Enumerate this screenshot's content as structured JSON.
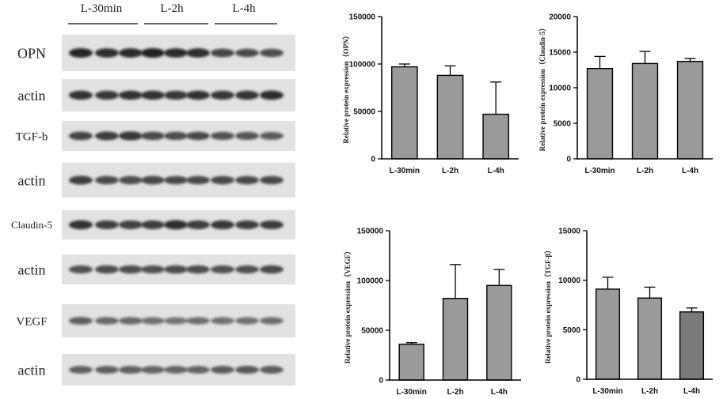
{
  "blot": {
    "groups": [
      "L-30min",
      "L-2h",
      "L-4h"
    ],
    "lanes_per_group": 3,
    "rows": [
      {
        "label": "OPN",
        "intensity": [
          0.92,
          0.88,
          0.9,
          0.95,
          0.9,
          0.88,
          0.75,
          0.72,
          0.7
        ]
      },
      {
        "label": "actin",
        "intensity": [
          0.85,
          0.82,
          0.85,
          0.85,
          0.82,
          0.85,
          0.82,
          0.84,
          0.88
        ]
      },
      {
        "label": "TGF-b",
        "intensity": [
          0.75,
          0.8,
          0.82,
          0.72,
          0.7,
          0.72,
          0.68,
          0.66,
          0.62
        ]
      },
      {
        "label": "actin",
        "intensity": [
          0.78,
          0.72,
          0.7,
          0.74,
          0.72,
          0.72,
          0.72,
          0.72,
          0.72
        ]
      },
      {
        "label": "Claudin-5",
        "intensity": [
          0.85,
          0.8,
          0.78,
          0.8,
          0.88,
          0.8,
          0.82,
          0.8,
          0.8
        ]
      },
      {
        "label": "actin",
        "intensity": [
          0.68,
          0.7,
          0.7,
          0.68,
          0.7,
          0.7,
          0.68,
          0.68,
          0.72
        ]
      },
      {
        "label": "VEGF",
        "intensity": [
          0.6,
          0.55,
          0.55,
          0.5,
          0.48,
          0.52,
          0.5,
          0.5,
          0.52
        ]
      },
      {
        "label": "actin",
        "intensity": [
          0.6,
          0.6,
          0.6,
          0.58,
          0.58,
          0.58,
          0.62,
          0.64,
          0.62
        ]
      }
    ]
  },
  "chart_data": [
    {
      "type": "bar",
      "categories": [
        "L-30min",
        "L-2h",
        "L-4h"
      ],
      "values": [
        97000,
        88000,
        47000
      ],
      "errors": [
        3000,
        10000,
        34000
      ],
      "ylabel": "Relative protein expression（OPN）",
      "ylim": [
        0,
        150000
      ],
      "yticks": [
        0,
        50000,
        100000,
        150000
      ],
      "bar_colors": [
        "#9a9a9a",
        "#9a9a9a",
        "#9a9a9a"
      ]
    },
    {
      "type": "bar",
      "categories": [
        "L-30min",
        "L-2h",
        "L-4h"
      ],
      "values": [
        12700,
        13400,
        13700
      ],
      "errors": [
        1700,
        1700,
        400
      ],
      "ylabel": "Relative protein expression（Claudin-5）",
      "ylim": [
        0,
        20000
      ],
      "yticks": [
        0,
        5000,
        10000,
        15000,
        20000
      ],
      "bar_colors": [
        "#9a9a9a",
        "#9a9a9a",
        "#9a9a9a"
      ]
    },
    {
      "type": "bar",
      "categories": [
        "L-30min",
        "L-2h",
        "L-4h"
      ],
      "values": [
        36000,
        82000,
        95000
      ],
      "errors": [
        1500,
        34000,
        16000
      ],
      "ylabel": "Relative protein expression（VEGF）",
      "ylim": [
        0,
        150000
      ],
      "yticks": [
        0,
        50000,
        100000,
        150000
      ],
      "bar_colors": [
        "#9a9a9a",
        "#9a9a9a",
        "#9a9a9a"
      ]
    },
    {
      "type": "bar",
      "categories": [
        "L-30min",
        "L-2h",
        "L-4h"
      ],
      "values": [
        9100,
        8200,
        6800
      ],
      "errors": [
        1200,
        1100,
        400
      ],
      "ylabel": "Relative protein expression（TGF-β）",
      "ylim": [
        0,
        15000
      ],
      "yticks": [
        0,
        5000,
        10000,
        15000
      ],
      "bar_colors": [
        "#9a9a9a",
        "#9a9a9a",
        "#7a7a7a"
      ]
    }
  ]
}
